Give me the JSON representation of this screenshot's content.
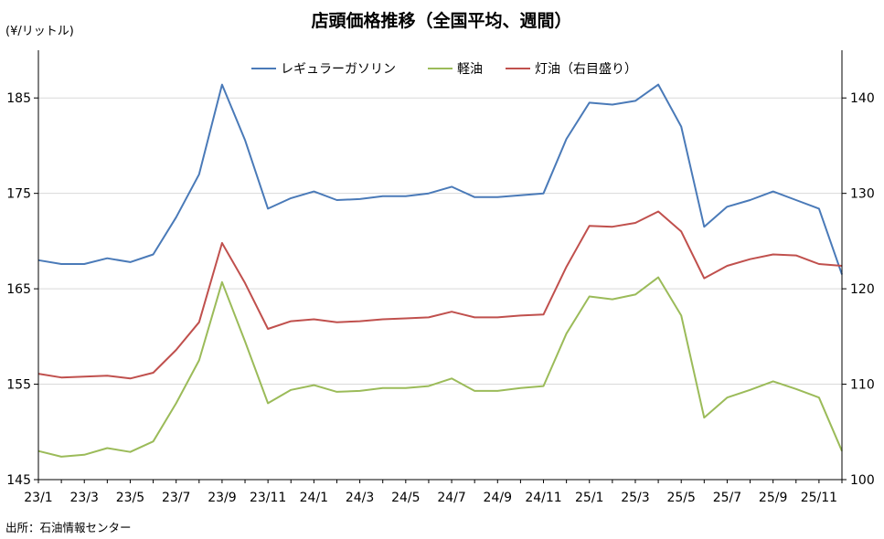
{
  "chart_data": {
    "type": "line",
    "title": "店頭価格推移（全国平均、週間）",
    "unit_label": "(¥/リットル)",
    "source": "出所：石油情報センター",
    "x_range": [
      "2023-01",
      "2025-12"
    ],
    "x_ticks": [
      "23/1",
      "23/3",
      "23/5",
      "23/7",
      "23/9",
      "23/11",
      "24/1",
      "24/3",
      "24/5",
      "24/7",
      "24/9",
      "24/11",
      "25/1",
      "25/3",
      "25/5",
      "25/7",
      "25/9",
      "25/11"
    ],
    "y_left": {
      "min": 145,
      "max": 190,
      "ticks": [
        145,
        155,
        165,
        175,
        185
      ],
      "tick_labels": [
        "145",
        "155",
        "165",
        "175",
        "185"
      ]
    },
    "y_right": {
      "min": 100,
      "max": 145,
      "ticks": [
        100,
        110,
        120,
        130,
        140
      ],
      "tick_labels": [
        "100",
        "110",
        "120",
        "130",
        "140"
      ]
    },
    "grid": "horizontal",
    "legend_position": "top-center",
    "series": [
      {
        "name": "レギュラーガソリン",
        "axis": "left",
        "color": "#4a7ab8",
        "points": [
          [
            "2023-01",
            168.0
          ],
          [
            "2023-02",
            167.6
          ],
          [
            "2023-03",
            167.6
          ],
          [
            "2023-04",
            168.2
          ],
          [
            "2023-05",
            167.8
          ],
          [
            "2023-06",
            168.6
          ],
          [
            "2023-07",
            172.5
          ],
          [
            "2023-08",
            177.0
          ],
          [
            "2023-09",
            186.4
          ],
          [
            "2023-10",
            180.6
          ],
          [
            "2023-11",
            173.4
          ],
          [
            "2023-12",
            174.5
          ],
          [
            "2024-01",
            175.2
          ],
          [
            "2024-02",
            174.3
          ],
          [
            "2024-03",
            174.4
          ],
          [
            "2024-04",
            174.7
          ],
          [
            "2024-05",
            174.7
          ],
          [
            "2024-06",
            175.0
          ],
          [
            "2024-07",
            175.7
          ],
          [
            "2024-08",
            174.6
          ],
          [
            "2024-09",
            174.6
          ],
          [
            "2024-10",
            174.8
          ],
          [
            "2024-11",
            175.0
          ],
          [
            "2024-12",
            180.7
          ],
          [
            "2025-01",
            184.5
          ],
          [
            "2025-02",
            184.3
          ],
          [
            "2025-03",
            184.7
          ],
          [
            "2025-04",
            186.4
          ],
          [
            "2025-05",
            182.0
          ],
          [
            "2025-06",
            171.5
          ],
          [
            "2025-07",
            173.6
          ],
          [
            "2025-08",
            174.3
          ],
          [
            "2025-09",
            175.2
          ],
          [
            "2025-10",
            174.3
          ],
          [
            "2025-11",
            173.4
          ],
          [
            "2025-12",
            166.5
          ]
        ]
      },
      {
        "name": "軽油",
        "axis": "left",
        "color": "#9bbb59",
        "points": [
          [
            "2023-01",
            148.0
          ],
          [
            "2023-02",
            147.4
          ],
          [
            "2023-03",
            147.6
          ],
          [
            "2023-04",
            148.3
          ],
          [
            "2023-05",
            147.9
          ],
          [
            "2023-06",
            149.0
          ],
          [
            "2023-07",
            153.0
          ],
          [
            "2023-08",
            157.5
          ],
          [
            "2023-09",
            165.7
          ],
          [
            "2023-10",
            159.5
          ],
          [
            "2023-11",
            153.0
          ],
          [
            "2023-12",
            154.4
          ],
          [
            "2024-01",
            154.9
          ],
          [
            "2024-02",
            154.2
          ],
          [
            "2024-03",
            154.3
          ],
          [
            "2024-04",
            154.6
          ],
          [
            "2024-05",
            154.6
          ],
          [
            "2024-06",
            154.8
          ],
          [
            "2024-07",
            155.6
          ],
          [
            "2024-08",
            154.3
          ],
          [
            "2024-09",
            154.3
          ],
          [
            "2024-10",
            154.6
          ],
          [
            "2024-11",
            154.8
          ],
          [
            "2024-12",
            160.3
          ],
          [
            "2025-01",
            164.2
          ],
          [
            "2025-02",
            163.9
          ],
          [
            "2025-03",
            164.4
          ],
          [
            "2025-04",
            166.2
          ],
          [
            "2025-05",
            162.2
          ],
          [
            "2025-06",
            151.5
          ],
          [
            "2025-07",
            153.6
          ],
          [
            "2025-08",
            154.4
          ],
          [
            "2025-09",
            155.3
          ],
          [
            "2025-10",
            154.5
          ],
          [
            "2025-11",
            153.6
          ],
          [
            "2025-12",
            148.0
          ]
        ]
      },
      {
        "name": "灯油（右目盛り）",
        "axis": "right",
        "color": "#c0504d",
        "points": [
          [
            "2023-01",
            111.1
          ],
          [
            "2023-02",
            110.7
          ],
          [
            "2023-03",
            110.8
          ],
          [
            "2023-04",
            110.9
          ],
          [
            "2023-05",
            110.6
          ],
          [
            "2023-06",
            111.2
          ],
          [
            "2023-07",
            113.6
          ],
          [
            "2023-08",
            116.5
          ],
          [
            "2023-09",
            124.8
          ],
          [
            "2023-10",
            120.6
          ],
          [
            "2023-11",
            115.8
          ],
          [
            "2023-12",
            116.6
          ],
          [
            "2024-01",
            116.8
          ],
          [
            "2024-02",
            116.5
          ],
          [
            "2024-03",
            116.6
          ],
          [
            "2024-04",
            116.8
          ],
          [
            "2024-05",
            116.9
          ],
          [
            "2024-06",
            117.0
          ],
          [
            "2024-07",
            117.6
          ],
          [
            "2024-08",
            117.0
          ],
          [
            "2024-09",
            117.0
          ],
          [
            "2024-10",
            117.2
          ],
          [
            "2024-11",
            117.3
          ],
          [
            "2024-12",
            122.3
          ],
          [
            "2025-01",
            126.6
          ],
          [
            "2025-02",
            126.5
          ],
          [
            "2025-03",
            126.9
          ],
          [
            "2025-04",
            128.1
          ],
          [
            "2025-05",
            126.0
          ],
          [
            "2025-06",
            121.1
          ],
          [
            "2025-07",
            122.4
          ],
          [
            "2025-08",
            123.1
          ],
          [
            "2025-09",
            123.6
          ],
          [
            "2025-10",
            123.5
          ],
          [
            "2025-11",
            122.6
          ],
          [
            "2025-12",
            122.4
          ]
        ]
      }
    ]
  }
}
